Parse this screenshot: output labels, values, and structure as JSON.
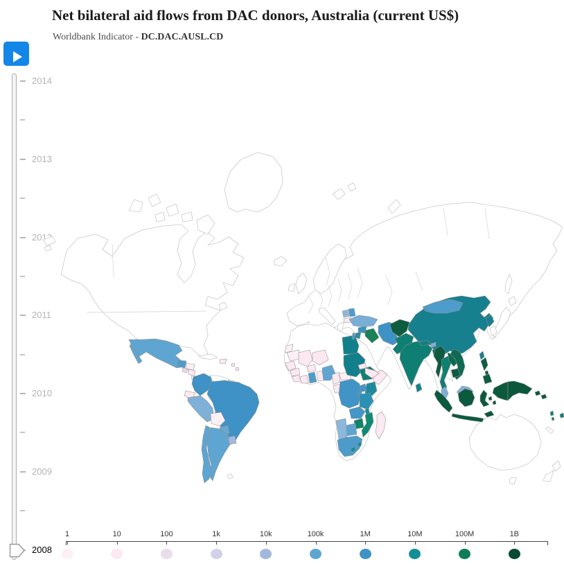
{
  "header": {
    "title": "Net bilateral aid flows from DAC donors, Australia (current US$)",
    "subtitle_prefix": "Worldbank Indicator - ",
    "indicator_code": "DC.DAC.AUSL.CD"
  },
  "controls": {
    "play_button": "play"
  },
  "timeline": {
    "years": [
      "2014",
      "2013",
      "2012",
      "2011",
      "2010",
      "2009",
      "2008"
    ],
    "selected_year": "2008"
  },
  "legend": {
    "stops": [
      {
        "label": "1",
        "color": "#fdf0f5"
      },
      {
        "label": "10",
        "color": "#fbe8f1"
      },
      {
        "label": "100",
        "color": "#e9ddec"
      },
      {
        "label": "1k",
        "color": "#d3d1e8"
      },
      {
        "label": "10k",
        "color": "#a4b7dc"
      },
      {
        "label": "100k",
        "color": "#5fa5d1"
      },
      {
        "label": "1M",
        "color": "#3e92c6"
      },
      {
        "label": "10M",
        "color": "#148e96"
      },
      {
        "label": "100M",
        "color": "#0e7d57"
      },
      {
        "label": "1B",
        "color": "#084a33"
      }
    ]
  },
  "chart_data": {
    "type": "choropleth",
    "title": "Net bilateral aid flows from DAC donors, Australia (current US$)",
    "indicator": "DC.DAC.AUSL.CD",
    "year": "2008",
    "scale_labels": [
      "1",
      "10",
      "100",
      "1k",
      "10k",
      "100k",
      "1M",
      "10M",
      "100M",
      "1B"
    ],
    "no_data_color": "#ffffff",
    "countries": {
      "mexico": "#5fa5d1",
      "guatemala": "#4d9bca",
      "el-salvador": "#e9ddec",
      "honduras": "#fdf0f5",
      "nicaragua": "#fbe8f1",
      "costa-rica": "#fdf0f5",
      "panama": "#fbe8f1",
      "hispaniola": "#fbe8f1",
      "caribbean-islands": "#fbe8f1",
      "colombia": "#3e92c6",
      "ecuador": "#fbe8f1",
      "peru": "#7fb0d7",
      "bolivia": "#fdf0f5",
      "brazil": "#3e92c6",
      "paraguay": "#6aa8d2",
      "uruguay": "#a4b7dc",
      "chile": "#5fa5d1",
      "argentina": "#5fa5d1",
      "guyana": "#fbe8f1",
      "suriname": "#fdf0f5",
      "western-sahara": "#fdf0f5",
      "mauritania": "#fdf0f5",
      "mali": "#fbe8f1",
      "niger": "#fbe8f1",
      "senegal": "#fbe8f1",
      "guinea": "#fbe8f1",
      "sierra-leone": "#fbe8f1",
      "cote-divoire": "#fbe8f1",
      "burkina-faso": "#fbe8f1",
      "ghana": "#4d9bca",
      "togo-benin": "#fbe8f1",
      "nigeria": "#5fa5d1",
      "cameroon": "#fbe8f1",
      "central-african-republic": "#fdf0f5",
      "congo": "#fbe8f1",
      "dr-congo": "#4094c6",
      "uganda": "#4496c8",
      "kenya": "#1e8a9e",
      "tanzania": "#2b91b4",
      "rwanda-burundi": "#4496c8",
      "zambia": "#4496c8",
      "malawi": "#148e96",
      "mozambique": "#108a74",
      "zimbabwe": "#0f8468",
      "botswana": "#5fa5d1",
      "namibia": "#8cb8dc",
      "south-africa": "#4d9bca",
      "lesotho": "#148e96",
      "swaziland": "#148e96",
      "madagascar": "#fbeaf2",
      "egypt": "#12808c",
      "sudan": "#12808c",
      "eritrea": "#fbe8f1",
      "ethiopia": "#0f8076",
      "somalia": "#fbe8f1",
      "bosnia": "#90b6da",
      "serbia": "#4e9ccb",
      "albania-macedonia": "#fbe8f1",
      "turkey": "#79aed6",
      "syria": "#3a93c0",
      "iraq": "#1a8158",
      "iran": "#3e92c6",
      "jordan": "#2a8f9a",
      "israel": "#4d9bca",
      "yemen": "#fbe8f1",
      "afghanistan": "#0d5c40",
      "pakistan": "#0e7f72",
      "india": "#0e7f72",
      "nepal": "#108080",
      "bhutan": "#7fb0d7",
      "bangladesh": "#0d6a50",
      "sri-lanka": "#15808c",
      "china": "#17808f",
      "north-korea": "#17808f",
      "mongolia": "#4e9ccb",
      "myanmar": "#0d5a40",
      "thailand": "#0f7f72",
      "laos": "#0e6a52",
      "vietnam": "#0e6a52",
      "cambodia": "#0d5a40",
      "malaysia": "#7fb0d7",
      "indonesia": "#0b5a3e",
      "philippines": "#0c5e41",
      "taiwan": "#17808f",
      "papua-new-guinea": "#0b573c",
      "timor-leste": "#0b573c",
      "solomon-islands": "#0b573c",
      "vanuatu": "#108070",
      "fiji": "#108070"
    }
  }
}
